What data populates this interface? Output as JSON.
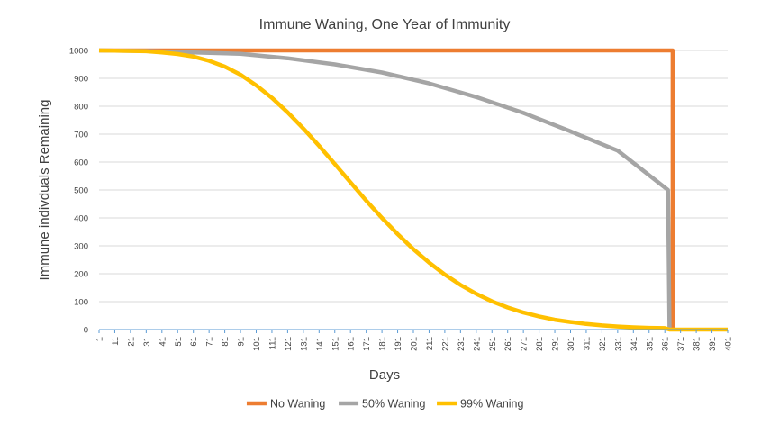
{
  "chart_data": {
    "type": "line",
    "title": "Immune Waning, One Year of Immunity",
    "xlabel": "Days",
    "ylabel": "Immune indivduals Remaining",
    "xlim": [
      1,
      401
    ],
    "ylim": [
      0,
      1000
    ],
    "y_ticks": [
      0,
      100,
      200,
      300,
      400,
      500,
      600,
      700,
      800,
      900,
      1000
    ],
    "x_ticks": [
      1,
      11,
      21,
      31,
      41,
      51,
      61,
      71,
      81,
      91,
      101,
      111,
      121,
      131,
      141,
      151,
      161,
      171,
      181,
      191,
      201,
      211,
      221,
      231,
      241,
      251,
      261,
      271,
      281,
      291,
      301,
      311,
      321,
      331,
      341,
      351,
      361,
      371,
      381,
      391,
      401
    ],
    "grid": "horizontal",
    "legend": "bottom",
    "series": [
      {
        "name": "No Waning",
        "color": "#ED7D31",
        "points": [
          [
            1,
            1000
          ],
          [
            366,
            1000
          ],
          [
            366,
            0
          ]
        ]
      },
      {
        "name": "50% Waning",
        "color": "#A5A5A5",
        "points": [
          [
            1,
            1000
          ],
          [
            31,
            998
          ],
          [
            61,
            993
          ],
          [
            91,
            988
          ],
          [
            121,
            972
          ],
          [
            151,
            950
          ],
          [
            181,
            921
          ],
          [
            211,
            882
          ],
          [
            241,
            833
          ],
          [
            271,
            776
          ],
          [
            301,
            710
          ],
          [
            331,
            641
          ],
          [
            363,
            500
          ],
          [
            364,
            0
          ]
        ]
      },
      {
        "name": "99% Waning",
        "color": "#FFC000",
        "points": [
          [
            1,
            1000
          ],
          [
            31,
            997
          ],
          [
            41,
            993
          ],
          [
            51,
            987
          ],
          [
            61,
            978
          ],
          [
            71,
            963
          ],
          [
            81,
            942
          ],
          [
            91,
            913
          ],
          [
            101,
            875
          ],
          [
            111,
            830
          ],
          [
            121,
            778
          ],
          [
            131,
            720
          ],
          [
            141,
            658
          ],
          [
            151,
            593
          ],
          [
            161,
            527
          ],
          [
            171,
            462
          ],
          [
            181,
            400
          ],
          [
            191,
            342
          ],
          [
            201,
            288
          ],
          [
            211,
            240
          ],
          [
            221,
            197
          ],
          [
            231,
            160
          ],
          [
            241,
            128
          ],
          [
            251,
            101
          ],
          [
            261,
            79
          ],
          [
            271,
            61
          ],
          [
            281,
            47
          ],
          [
            291,
            35
          ],
          [
            301,
            27
          ],
          [
            311,
            20
          ],
          [
            321,
            15
          ],
          [
            331,
            11
          ],
          [
            341,
            8
          ],
          [
            351,
            6
          ],
          [
            361,
            5
          ],
          [
            364,
            0
          ],
          [
            401,
            0
          ]
        ]
      }
    ]
  }
}
